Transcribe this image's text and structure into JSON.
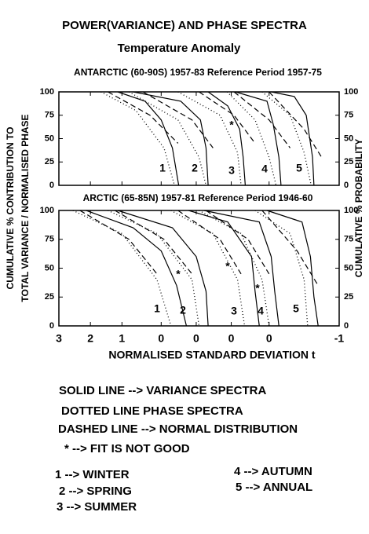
{
  "title": "POWER(VARIANCE) AND PHASE SPECTRA",
  "subtitle": "Temperature Anomaly",
  "y_label": [
    "CUMULATIVE % CONTRIBUTION TO",
    "TOTAL VARIANCE / NORMALISED PHASE"
  ],
  "y2_label": "CUMULATIVE %  PROBABILITY",
  "notes": [
    "SOLID LINE --> VARIANCE SPECTRA",
    "DOTTED LINE PHASE SPECTRA",
    "DASHED LINE --> NORMAL DISTRIBUTION",
    "*  --> FIT IS NOT GOOD"
  ],
  "key": [
    "1 --> WINTER",
    "2 --> SPRING",
    "3 --> SUMMER",
    "4 --> AUTUMN",
    "5 --> ANNUAL"
  ],
  "chart_data": [
    {
      "type": "line",
      "title": "ANTARCTIC (60-90S) 1957-83 Reference Period 1957-75",
      "xlim": [
        3,
        -1
      ],
      "ylim": [
        0,
        100
      ],
      "yticks": [
        0,
        25,
        50,
        75,
        100
      ],
      "y2lim": [
        0,
        100
      ],
      "y2ticks": [
        0,
        25,
        50,
        75,
        100
      ],
      "curve_labels": [
        "1",
        "2",
        "3",
        "4",
        "5"
      ],
      "stars": [
        "*"
      ],
      "series": [
        {
          "style": "solid",
          "color": "#000",
          "x": [
            2.16,
            1.77,
            1.54,
            1.38,
            1.29
          ],
          "values": [
            100,
            90,
            70,
            40,
            0
          ]
        },
        {
          "style": "solid",
          "color": "#000",
          "x": [
            1.94,
            1.26,
            0.98,
            0.9,
            0.87
          ],
          "values": [
            100,
            90,
            70,
            40,
            0
          ]
        },
        {
          "style": "solid",
          "color": "#000",
          "x": [
            0.87,
            0.59,
            0.42,
            0.37,
            0.34
          ],
          "values": [
            100,
            85,
            60,
            30,
            0
          ]
        },
        {
          "style": "solid",
          "color": "#000",
          "x": [
            0.48,
            0.03,
            -0.06,
            -0.14,
            -0.17
          ],
          "values": [
            100,
            90,
            65,
            30,
            0
          ]
        },
        {
          "style": "solid",
          "color": "#000",
          "x": [
            -0.03,
            -0.36,
            -0.53,
            -0.62,
            -0.64
          ],
          "values": [
            100,
            95,
            75,
            30,
            0
          ]
        },
        {
          "style": "dashed",
          "color": "#000",
          "x": [
            2.3,
            1.7,
            1.3
          ],
          "values": [
            100,
            75,
            45
          ]
        },
        {
          "style": "dashed",
          "color": "#000",
          "x": [
            1.8,
            1.1,
            0.8
          ],
          "values": [
            100,
            70,
            40
          ]
        },
        {
          "style": "dashed",
          "color": "#000",
          "x": [
            1.0,
            0.5,
            0.2
          ],
          "values": [
            100,
            75,
            45
          ]
        },
        {
          "style": "dashed",
          "color": "#000",
          "x": [
            0.5,
            0.0,
            -0.3
          ],
          "values": [
            100,
            70,
            40
          ]
        },
        {
          "style": "dashed",
          "color": "#000",
          "x": [
            0.0,
            -0.5,
            -0.75
          ],
          "values": [
            100,
            60,
            30
          ]
        },
        {
          "style": "dotted",
          "color": "#000",
          "x": [
            2.4,
            1.9,
            1.5,
            1.35
          ],
          "values": [
            100,
            80,
            40,
            0
          ]
        },
        {
          "style": "dotted",
          "color": "#000",
          "x": [
            2.0,
            1.3,
            1.0,
            0.9
          ],
          "values": [
            100,
            70,
            30,
            0
          ]
        },
        {
          "style": "dotted",
          "color": "#000",
          "x": [
            1.3,
            0.7,
            0.45,
            0.4
          ],
          "values": [
            100,
            75,
            35,
            0
          ]
        },
        {
          "style": "dotted",
          "color": "#000",
          "x": [
            0.6,
            0.2,
            0.0,
            -0.1
          ],
          "values": [
            100,
            70,
            30,
            0
          ]
        },
        {
          "style": "dotted",
          "color": "#000",
          "x": [
            0.1,
            -0.3,
            -0.5,
            -0.6
          ],
          "values": [
            100,
            75,
            35,
            0
          ]
        }
      ]
    },
    {
      "type": "line",
      "title": "ARCTIC (65-85N) 1957-81 Reference Period 1946-60",
      "x_label": "NORMALISED STANDARD DEVIATION  t",
      "xlim": [
        3,
        -1
      ],
      "xticks": [
        3,
        {
          "value": 2.55,
          "label": "2"
        },
        {
          "value": 2.1,
          "label": "1"
        },
        {
          "value": 1.54,
          "label": "0"
        },
        {
          "value": 1.04,
          "label": "0"
        },
        {
          "value": 0.54,
          "label": "0"
        },
        0,
        -1
      ],
      "ylim": [
        0,
        100
      ],
      "yticks": [
        0,
        25,
        50,
        75,
        100
      ],
      "y2lim": [
        0,
        100
      ],
      "y2ticks": [
        0,
        25,
        50,
        75,
        100
      ],
      "curve_labels": [
        "1",
        "2",
        "3",
        "4",
        "5"
      ],
      "stars": [
        "*",
        "*",
        "*"
      ],
      "series": [
        {
          "style": "solid",
          "color": "#000",
          "x": [
            2.61,
            1.94,
            1.54,
            1.32,
            1.18
          ],
          "values": [
            100,
            85,
            65,
            35,
            0
          ]
        },
        {
          "style": "solid",
          "color": "#000",
          "x": [
            2.16,
            1.38,
            1.04,
            0.9,
            0.87
          ],
          "values": [
            100,
            85,
            60,
            30,
            0
          ]
        },
        {
          "style": "solid",
          "color": "#000",
          "x": [
            1.15,
            0.59,
            0.25,
            0.2,
            0.14
          ],
          "values": [
            100,
            90,
            60,
            30,
            0
          ]
        },
        {
          "style": "solid",
          "color": "#000",
          "x": [
            0.93,
            0.14,
            -0.03,
            -0.08,
            -0.14
          ],
          "values": [
            100,
            90,
            60,
            30,
            0
          ]
        },
        {
          "style": "solid",
          "color": "#000",
          "x": [
            0.03,
            -0.47,
            -0.59,
            -0.64,
            -0.7
          ],
          "values": [
            100,
            90,
            60,
            25,
            0
          ]
        },
        {
          "style": "dashed",
          "color": "#000",
          "x": [
            2.7,
            2.0,
            1.6
          ],
          "values": [
            100,
            75,
            45
          ]
        },
        {
          "style": "dashed",
          "color": "#000",
          "x": [
            2.2,
            1.5,
            1.1
          ],
          "values": [
            100,
            75,
            45
          ]
        },
        {
          "style": "dashed",
          "color": "#000",
          "x": [
            1.3,
            0.7,
            0.4
          ],
          "values": [
            100,
            75,
            45
          ]
        },
        {
          "style": "dashed",
          "color": "#000",
          "x": [
            0.9,
            0.3,
            0.0
          ],
          "values": [
            100,
            75,
            45
          ]
        },
        {
          "style": "dashed",
          "color": "#000",
          "x": [
            0.1,
            -0.4,
            -0.7
          ],
          "values": [
            100,
            65,
            35
          ]
        },
        {
          "style": "dotted",
          "color": "#000",
          "x": [
            2.8,
            2.1,
            1.6,
            1.4
          ],
          "values": [
            100,
            80,
            40,
            0
          ]
        },
        {
          "style": "dotted",
          "color": "#000",
          "x": [
            2.3,
            1.6,
            1.1,
            1.0
          ],
          "values": [
            100,
            80,
            40,
            0
          ]
        },
        {
          "style": "dotted",
          "color": "#000",
          "x": [
            1.4,
            0.8,
            0.45,
            0.35
          ],
          "values": [
            100,
            80,
            40,
            0
          ]
        },
        {
          "style": "dotted",
          "color": "#000",
          "x": [
            1.0,
            0.4,
            0.1,
            0.0
          ],
          "values": [
            100,
            80,
            40,
            0
          ]
        },
        {
          "style": "dotted",
          "color": "#000",
          "x": [
            0.2,
            -0.3,
            -0.5,
            -0.55
          ],
          "values": [
            100,
            80,
            40,
            0
          ]
        }
      ]
    }
  ]
}
